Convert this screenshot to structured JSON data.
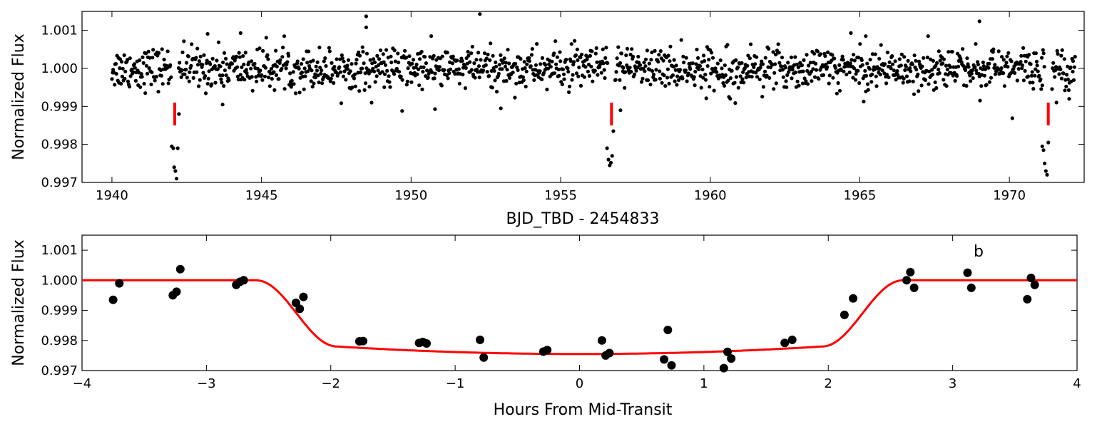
{
  "chart_data": [
    {
      "type": "scatter",
      "xlabel": "BJD_TBD - 2454833",
      "ylabel": "Normalized Flux",
      "xlim": [
        1939,
        1972.5
      ],
      "ylim": [
        0.997,
        1.0015
      ],
      "xticks": [
        "1940",
        "1945",
        "1950",
        "1955",
        "1960",
        "1965",
        "1970"
      ],
      "yticks": [
        "0.997",
        "0.998",
        "0.999",
        "1.000",
        "1.001"
      ],
      "point_color": "#000000",
      "marker_color": "#ff0000",
      "transit_markers_x": [
        1942.1,
        1956.7,
        1971.3
      ],
      "transit_marker_y": [
        0.9985,
        0.9991
      ],
      "transit_times": [
        1942.1,
        1956.7,
        1971.3
      ],
      "baseline_flux": 1.0,
      "out_of_transit_x_range": [
        1940.0,
        1972.2
      ],
      "outliers": [
        {
          "x": 1948.5,
          "y": 1.00137
        },
        {
          "x": 1948.5,
          "y": 1.00108
        },
        {
          "x": 1952.3,
          "y": 1.00143
        },
        {
          "x": 1969.0,
          "y": 1.00124
        },
        {
          "x": 1944.3,
          "y": 1.00093
        },
        {
          "x": 1964.7,
          "y": 1.00093
        },
        {
          "x": 1943.2,
          "y": 1.00091
        },
        {
          "x": 1965.2,
          "y": 1.00085
        },
        {
          "x": 1949.7,
          "y": 0.99888
        },
        {
          "x": 1953.0,
          "y": 0.99895
        },
        {
          "x": 1970.1,
          "y": 0.99869
        },
        {
          "x": 1950.8,
          "y": 0.99893
        },
        {
          "x": 1943.7,
          "y": 0.99905
        },
        {
          "x": 1957.0,
          "y": 0.9989
        },
        {
          "x": 1972.0,
          "y": 0.9992
        }
      ],
      "in_transit_points": [
        {
          "x": 1942.0,
          "y": 0.99795
        },
        {
          "x": 1942.05,
          "y": 0.9979
        },
        {
          "x": 1942.08,
          "y": 0.9974
        },
        {
          "x": 1942.12,
          "y": 0.9973
        },
        {
          "x": 1942.16,
          "y": 0.9971
        },
        {
          "x": 1942.2,
          "y": 0.9979
        },
        {
          "x": 1942.24,
          "y": 0.9988
        },
        {
          "x": 1956.55,
          "y": 0.9979
        },
        {
          "x": 1956.6,
          "y": 0.9976
        },
        {
          "x": 1956.64,
          "y": 0.99745
        },
        {
          "x": 1956.68,
          "y": 0.99752
        },
        {
          "x": 1956.72,
          "y": 0.9977
        },
        {
          "x": 1956.76,
          "y": 0.99835
        },
        {
          "x": 1971.1,
          "y": 0.99795
        },
        {
          "x": 1971.14,
          "y": 0.99785
        },
        {
          "x": 1971.18,
          "y": 0.9975
        },
        {
          "x": 1971.22,
          "y": 0.9973
        },
        {
          "x": 1971.26,
          "y": 0.9972
        },
        {
          "x": 1971.3,
          "y": 0.99805
        }
      ]
    },
    {
      "type": "scatter",
      "xlabel": "Hours From Mid-Transit",
      "ylabel": "Normalized Flux",
      "annotation": "b",
      "xlim": [
        -4,
        4
      ],
      "ylim": [
        0.997,
        1.0015
      ],
      "xticks": [
        "−4",
        "−3",
        "−2",
        "−1",
        "0",
        "1",
        "2",
        "3",
        "4"
      ],
      "yticks": [
        "0.997",
        "0.998",
        "0.999",
        "1.000",
        "1.001"
      ],
      "point_color": "#000000",
      "model_color": "#ff0000",
      "points": [
        {
          "x": -3.75,
          "y": 0.99935
        },
        {
          "x": -3.7,
          "y": 0.9999
        },
        {
          "x": -3.27,
          "y": 0.9995
        },
        {
          "x": -3.24,
          "y": 0.99962
        },
        {
          "x": -3.21,
          "y": 1.00037
        },
        {
          "x": -2.76,
          "y": 0.99985
        },
        {
          "x": -2.73,
          "y": 0.99995
        },
        {
          "x": -2.7,
          "y": 1.0
        },
        {
          "x": -2.28,
          "y": 0.99925
        },
        {
          "x": -2.25,
          "y": 0.99905
        },
        {
          "x": -2.22,
          "y": 0.99945
        },
        {
          "x": -1.77,
          "y": 0.99797
        },
        {
          "x": -1.74,
          "y": 0.99798
        },
        {
          "x": -1.29,
          "y": 0.99792
        },
        {
          "x": -1.26,
          "y": 0.99795
        },
        {
          "x": -1.23,
          "y": 0.9979
        },
        {
          "x": -0.8,
          "y": 0.99802
        },
        {
          "x": -0.77,
          "y": 0.99743
        },
        {
          "x": -0.29,
          "y": 0.99763
        },
        {
          "x": -0.26,
          "y": 0.99768
        },
        {
          "x": 0.18,
          "y": 0.998
        },
        {
          "x": 0.21,
          "y": 0.9975
        },
        {
          "x": 0.24,
          "y": 0.99758
        },
        {
          "x": 0.68,
          "y": 0.99737
        },
        {
          "x": 0.71,
          "y": 0.99835
        },
        {
          "x": 0.74,
          "y": 0.99717
        },
        {
          "x": 1.16,
          "y": 0.99708
        },
        {
          "x": 1.19,
          "y": 0.99762
        },
        {
          "x": 1.22,
          "y": 0.9974
        },
        {
          "x": 1.65,
          "y": 0.99792
        },
        {
          "x": 1.71,
          "y": 0.99802
        },
        {
          "x": 2.13,
          "y": 0.99885
        },
        {
          "x": 2.2,
          "y": 0.9994
        },
        {
          "x": 2.63,
          "y": 1.0
        },
        {
          "x": 2.66,
          "y": 1.00027
        },
        {
          "x": 2.69,
          "y": 0.99975
        },
        {
          "x": 3.12,
          "y": 1.00025
        },
        {
          "x": 3.15,
          "y": 0.99975
        },
        {
          "x": 3.6,
          "y": 0.99937
        },
        {
          "x": 3.63,
          "y": 1.00008
        },
        {
          "x": 3.66,
          "y": 0.99985
        }
      ],
      "model": {
        "baseline": 1.0,
        "depth": 0.00245,
        "t_full_half": 1.95,
        "t_total_half": 2.6
      }
    }
  ]
}
